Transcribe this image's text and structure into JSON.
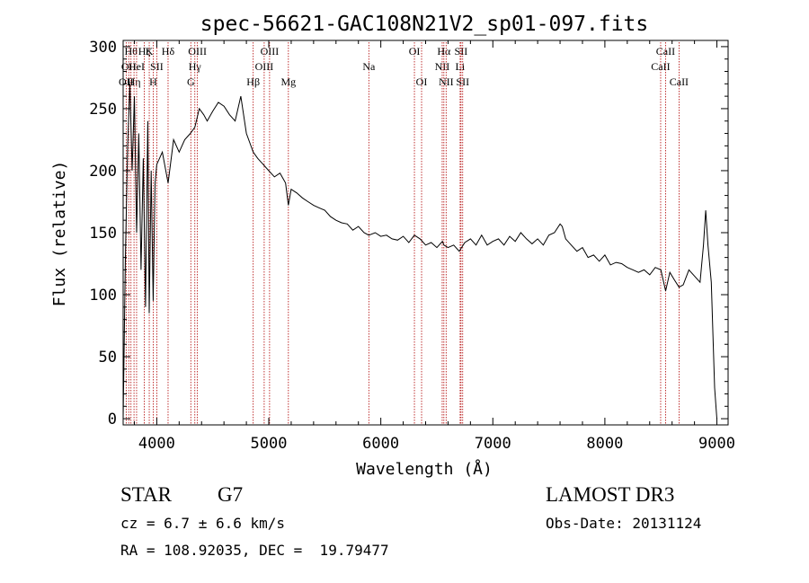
{
  "chart_data": {
    "type": "line",
    "title": "spec-56621-GAC108N21V2_sp01-097.fits",
    "xlabel": "Wavelength (Å)",
    "ylabel": "Flux (relative)",
    "xlim": [
      3700,
      9100
    ],
    "ylim": [
      -5,
      305
    ],
    "xticks": [
      4000,
      5000,
      6000,
      7000,
      8000,
      9000
    ],
    "xtick_labels": [
      "4000",
      "5000",
      "6000",
      "7000",
      "8000",
      "9000"
    ],
    "yticks": [
      0,
      50,
      100,
      150,
      200,
      250,
      300
    ],
    "ytick_labels": [
      "0",
      "50",
      "100",
      "150",
      "200",
      "250",
      "300"
    ],
    "grid": false,
    "series": [
      {
        "name": "flux",
        "x": [
          3700,
          3720,
          3740,
          3760,
          3780,
          3800,
          3820,
          3840,
          3860,
          3880,
          3900,
          3920,
          3933,
          3950,
          3968,
          3985,
          4000,
          4050,
          4101,
          4150,
          4200,
          4250,
          4300,
          4340,
          4380,
          4420,
          4450,
          4500,
          4550,
          4600,
          4650,
          4700,
          4750,
          4800,
          4861,
          4900,
          4950,
          5000,
          5050,
          5100,
          5150,
          5175,
          5200,
          5250,
          5300,
          5350,
          5400,
          5450,
          5500,
          5550,
          5600,
          5650,
          5700,
          5750,
          5800,
          5850,
          5893,
          5950,
          6000,
          6050,
          6100,
          6150,
          6200,
          6250,
          6300,
          6350,
          6400,
          6450,
          6500,
          6550,
          6563,
          6600,
          6650,
          6700,
          6750,
          6800,
          6850,
          6900,
          6950,
          7000,
          7050,
          7100,
          7150,
          7200,
          7250,
          7300,
          7350,
          7400,
          7450,
          7500,
          7550,
          7600,
          7620,
          7650,
          7700,
          7750,
          7800,
          7850,
          7900,
          7950,
          8000,
          8050,
          8100,
          8150,
          8200,
          8250,
          8300,
          8350,
          8400,
          8450,
          8500,
          8542,
          8580,
          8620,
          8662,
          8700,
          8750,
          8800,
          8850,
          8880,
          8900,
          8920,
          8950,
          8980,
          9000
        ],
        "y": [
          0,
          130,
          220,
          270,
          200,
          260,
          150,
          230,
          120,
          210,
          90,
          240,
          85,
          200,
          95,
          190,
          205,
          215,
          190,
          225,
          215,
          225,
          230,
          235,
          250,
          245,
          240,
          248,
          255,
          252,
          245,
          240,
          260,
          230,
          215,
          210,
          205,
          200,
          195,
          198,
          190,
          172,
          185,
          182,
          178,
          175,
          172,
          170,
          168,
          163,
          160,
          158,
          157,
          152,
          155,
          150,
          148,
          150,
          147,
          148,
          145,
          144,
          147,
          142,
          148,
          145,
          140,
          142,
          138,
          143,
          140,
          138,
          140,
          135,
          142,
          145,
          140,
          148,
          140,
          143,
          145,
          140,
          147,
          143,
          150,
          145,
          141,
          145,
          140,
          148,
          150,
          157,
          155,
          145,
          140,
          135,
          138,
          130,
          132,
          127,
          132,
          124,
          126,
          125,
          122,
          120,
          118,
          120,
          116,
          122,
          120,
          103,
          118,
          112,
          106,
          108,
          120,
          115,
          110,
          140,
          168,
          140,
          110,
          25,
          0
        ]
      }
    ],
    "lines": [
      {
        "wl": 3727,
        "labels": [
          "OII"
        ],
        "rows": [
          2
        ]
      },
      {
        "wl": 3750,
        "labels": [
          "OII"
        ],
        "rows": [
          1
        ]
      },
      {
        "wl": 3770,
        "labels": [
          "Hθ"
        ],
        "rows": [
          0
        ]
      },
      {
        "wl": 3797,
        "labels": [
          "Hη"
        ],
        "rows": [
          2
        ]
      },
      {
        "wl": 3820,
        "labels": [
          "HeI"
        ],
        "rows": [
          1
        ]
      },
      {
        "wl": 3889,
        "labels": [
          "Hζ"
        ],
        "rows": [
          0
        ]
      },
      {
        "wl": 3933,
        "labels": [
          "K"
        ],
        "rows": [
          0
        ]
      },
      {
        "wl": 3968,
        "labels": [
          "H"
        ],
        "rows": [
          2
        ]
      },
      {
        "wl": 4000,
        "labels": [
          "SII"
        ],
        "rows": [
          1
        ]
      },
      {
        "wl": 4101,
        "labels": [
          "Hδ"
        ],
        "rows": [
          0
        ]
      },
      {
        "wl": 4304,
        "labels": [
          "G"
        ],
        "rows": [
          2
        ]
      },
      {
        "wl": 4340,
        "labels": [
          "Hγ"
        ],
        "rows": [
          1
        ]
      },
      {
        "wl": 4363,
        "labels": [
          "OIII"
        ],
        "rows": [
          0
        ]
      },
      {
        "wl": 4861,
        "labels": [
          "Hβ"
        ],
        "rows": [
          2
        ]
      },
      {
        "wl": 4959,
        "labels": [
          "OIII"
        ],
        "rows": [
          1
        ]
      },
      {
        "wl": 5007,
        "labels": [
          "OIII"
        ],
        "rows": [
          0
        ]
      },
      {
        "wl": 5175,
        "labels": [
          "Mg"
        ],
        "rows": [
          2
        ]
      },
      {
        "wl": 5893,
        "labels": [
          "Na"
        ],
        "rows": [
          1
        ]
      },
      {
        "wl": 6300,
        "labels": [
          "OI"
        ],
        "rows": [
          0
        ]
      },
      {
        "wl": 6364,
        "labels": [
          "OI"
        ],
        "rows": [
          2
        ]
      },
      {
        "wl": 6548,
        "labels": [
          "NII"
        ],
        "rows": [
          1
        ]
      },
      {
        "wl": 6563,
        "labels": [
          "Hα"
        ],
        "rows": [
          0
        ]
      },
      {
        "wl": 6583,
        "labels": [
          "NII"
        ],
        "rows": [
          2
        ]
      },
      {
        "wl": 6708,
        "labels": [
          "Li"
        ],
        "rows": [
          1
        ]
      },
      {
        "wl": 6716,
        "labels": [
          "SII"
        ],
        "rows": [
          0
        ]
      },
      {
        "wl": 6731,
        "labels": [
          "SII"
        ],
        "rows": [
          2
        ]
      },
      {
        "wl": 8498,
        "labels": [
          "CaII"
        ],
        "rows": [
          1
        ]
      },
      {
        "wl": 8542,
        "labels": [
          "CaII"
        ],
        "rows": [
          0
        ]
      },
      {
        "wl": 8662,
        "labels": [
          "CaII"
        ],
        "rows": [
          2
        ]
      }
    ]
  },
  "info": {
    "object_class": "STAR",
    "subclass": "G7",
    "survey": "LAMOST DR3",
    "redshift": "cz = 6.7 ± 6.6 km/s",
    "obs_date": "Obs-Date: 20131124",
    "coords": "RA = 108.92035, DEC =  19.79477"
  },
  "colors": {
    "line_marker": "#b00000",
    "spectrum": "#000000",
    "axes": "#000000"
  }
}
